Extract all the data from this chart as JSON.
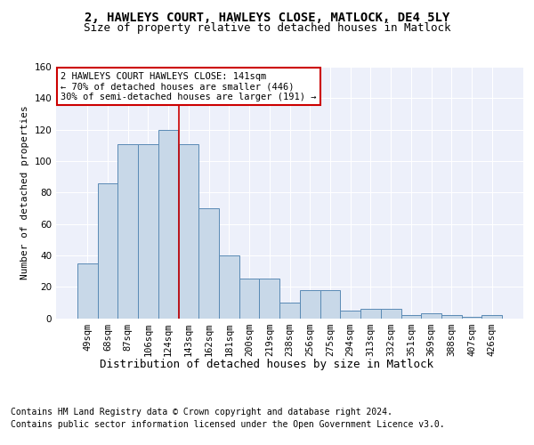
{
  "title1": "2, HAWLEYS COURT, HAWLEYS CLOSE, MATLOCK, DE4 5LY",
  "title2": "Size of property relative to detached houses in Matlock",
  "xlabel": "Distribution of detached houses by size in Matlock",
  "ylabel": "Number of detached properties",
  "footnote1": "Contains HM Land Registry data © Crown copyright and database right 2024.",
  "footnote2": "Contains public sector information licensed under the Open Government Licence v3.0.",
  "bin_labels": [
    "49sqm",
    "68sqm",
    "87sqm",
    "106sqm",
    "124sqm",
    "143sqm",
    "162sqm",
    "181sqm",
    "200sqm",
    "219sqm",
    "238sqm",
    "256sqm",
    "275sqm",
    "294sqm",
    "313sqm",
    "332sqm",
    "351sqm",
    "369sqm",
    "388sqm",
    "407sqm",
    "426sqm"
  ],
  "bar_values": [
    35,
    86,
    111,
    111,
    120,
    111,
    70,
    40,
    25,
    25,
    10,
    18,
    18,
    5,
    6,
    6,
    2,
    3,
    2,
    1,
    2
  ],
  "bar_color": "#c8d8e8",
  "bar_edge_color": "#5a8ab5",
  "subject_line_bin_index": 5,
  "subject_line_color": "#cc0000",
  "annotation_text": "2 HAWLEYS COURT HAWLEYS CLOSE: 141sqm\n← 70% of detached houses are smaller (446)\n30% of semi-detached houses are larger (191) →",
  "annotation_box_color": "#cc0000",
  "ylim": [
    0,
    160
  ],
  "yticks": [
    0,
    20,
    40,
    60,
    80,
    100,
    120,
    140,
    160
  ],
  "bg_color": "#edf0fa",
  "grid_color": "#ffffff",
  "title1_fontsize": 10,
  "title2_fontsize": 9,
  "xlabel_fontsize": 9,
  "ylabel_fontsize": 8,
  "tick_fontsize": 7.5,
  "annotation_fontsize": 7.5,
  "footnote_fontsize": 7
}
